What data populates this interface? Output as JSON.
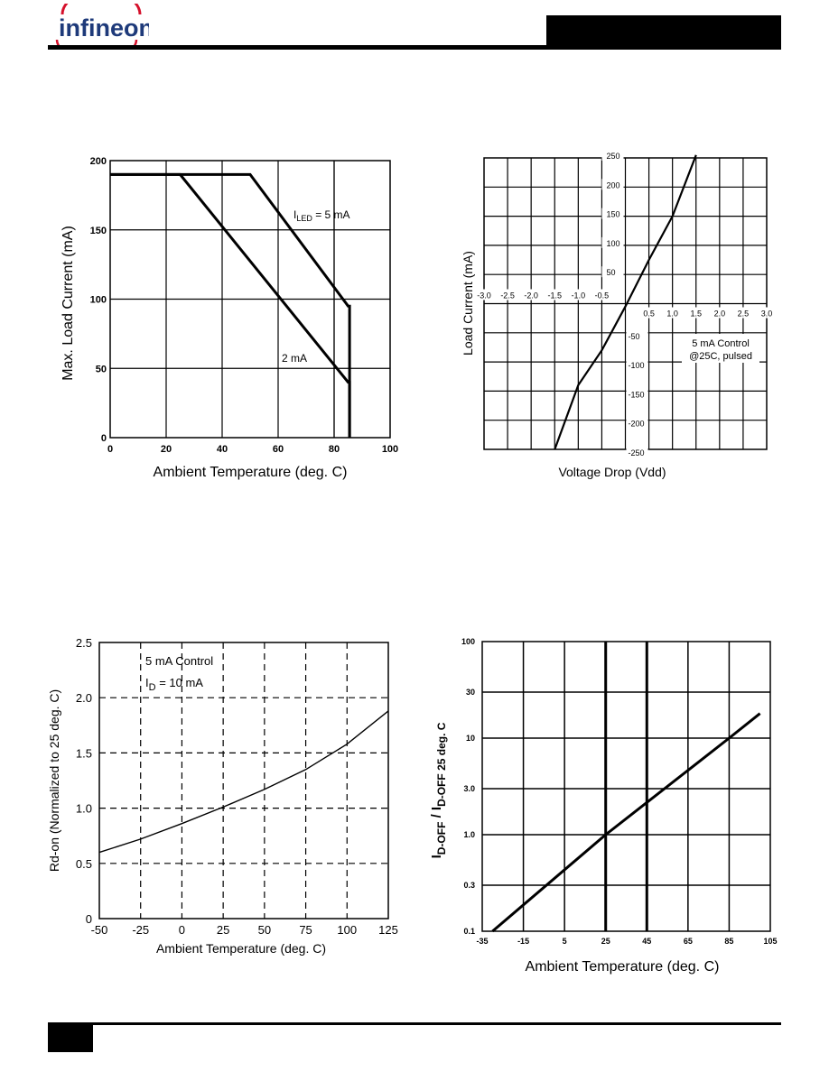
{
  "header": {
    "logo_text": "infineon"
  },
  "chart_data": [
    {
      "type": "line",
      "xlabel": "Ambient Temperature (deg. C)",
      "ylabel": "Max. Load Current (mA)",
      "xlim": [
        0,
        100
      ],
      "ylim": [
        0,
        200
      ],
      "xticks": [
        0,
        20,
        40,
        60,
        80,
        100
      ],
      "yticks": [
        0,
        50,
        100,
        150,
        200
      ],
      "grid": true,
      "series": [
        {
          "name": "5 mA",
          "x": [
            0,
            50,
            85,
            85.5,
            85.5
          ],
          "y": [
            190,
            190,
            95,
            95,
            0
          ]
        },
        {
          "name": "2 mA",
          "x": [
            0,
            25,
            85,
            85.5,
            85.5
          ],
          "y": [
            190,
            190,
            40,
            40,
            0
          ]
        }
      ],
      "annotations": [
        {
          "prefix": "I",
          "sub": "LED",
          "suffix": " = 5 mA"
        },
        {
          "text": "2 mA"
        }
      ]
    },
    {
      "type": "line",
      "xlabel": "Voltage Drop (Vdd)",
      "ylabel": "Load Current (mA)",
      "xlim": [
        -3.0,
        3.0
      ],
      "ylim": [
        -250,
        250
      ],
      "xticks_neg": [
        "-3.0",
        "-2.5",
        "-2.0",
        "-1.5",
        "-1.0",
        "-0.5"
      ],
      "xticks_pos": [
        "0.5",
        "1.0",
        "1.5",
        "2.0",
        "2.5",
        "3.0"
      ],
      "yticks_pos": [
        "250",
        "200",
        "150",
        "100",
        "50"
      ],
      "yticks_neg": [
        "-50",
        "-100",
        "-150",
        "-200",
        "-250"
      ],
      "grid": true,
      "series": [
        {
          "x": [
            -1.5,
            -1.0,
            -0.5,
            0,
            0.5,
            1.0,
            1.5
          ],
          "y": [
            -250,
            -140,
            -80,
            -5,
            75,
            150,
            255
          ]
        }
      ],
      "annotations": [
        {
          "text": "5 mA Control"
        },
        {
          "text": "@25C, pulsed"
        }
      ]
    },
    {
      "type": "line",
      "xlabel": "Ambient Temperature (deg. C)",
      "ylabel": "Rd-on (Normalized to 25 deg. C)",
      "xlim": [
        -50,
        125
      ],
      "ylim": [
        0,
        2.5
      ],
      "xticks": [
        "-50",
        "-25",
        "0",
        "25",
        "50",
        "75",
        "100",
        "125"
      ],
      "yticks": [
        "0",
        "0.5",
        "1.0",
        "1.5",
        "2.0",
        "2.5"
      ],
      "grid": "dashed",
      "series": [
        {
          "x": [
            -50,
            -25,
            0,
            25,
            50,
            75,
            100,
            125
          ],
          "y": [
            0.6,
            0.72,
            0.86,
            1.01,
            1.17,
            1.35,
            1.58,
            1.88
          ]
        }
      ],
      "annotations": [
        {
          "text": "5 mA Control"
        },
        {
          "prefix": "I",
          "sub": "D",
          "suffix": " = 10 mA"
        }
      ]
    },
    {
      "type": "line",
      "xlabel": "Ambient Temperature (deg. C)",
      "ylabel_main": "I",
      "ylabel_sub1": "D-OFF",
      "ylabel_slash": " / I",
      "ylabel_sub2": "D-OFF 25 deg. C",
      "xlim": [
        -35,
        105
      ],
      "ylim": [
        0.1,
        100
      ],
      "yscale": "log",
      "xticks": [
        "-35",
        "-15",
        "5",
        "25",
        "45",
        "65",
        "85",
        "105"
      ],
      "yticks": [
        "0.1",
        "0.3",
        "1.0",
        "3.0",
        "10",
        "30",
        "100"
      ],
      "grid": true,
      "series": [
        {
          "x": [
            -30,
            25,
            85,
            100
          ],
          "y": [
            0.1,
            1.0,
            10,
            18
          ]
        }
      ]
    }
  ]
}
